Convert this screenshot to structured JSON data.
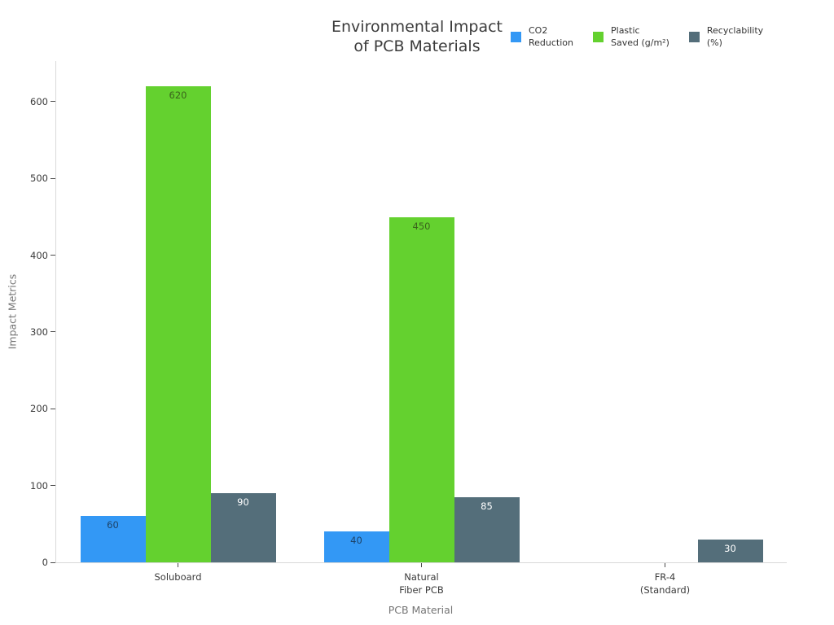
{
  "title": "Environmental Impact\nof PCB Materials",
  "legend": [
    {
      "id": "co2-reduction",
      "label": "CO2\nReduction",
      "color": "#3398f5"
    },
    {
      "id": "plastic-saved",
      "label": "Plastic\nSaved (g/m²)",
      "color": "#64d12f"
    },
    {
      "id": "recyclability",
      "label": "Recyclability\n(%)",
      "color": "#546e7a"
    }
  ],
  "chart_data": {
    "type": "bar",
    "title": "Environmental Impact of PCB Materials",
    "xlabel": "PCB Material",
    "ylabel": "Impact Metrics",
    "categories": [
      "Soluboard",
      "Natural\nFiber PCB",
      "FR-4\n(Standard)"
    ],
    "series": [
      {
        "id": "co2-reduction",
        "name": "CO2 Reduction",
        "color": "#3398f5",
        "label_color": "#1d4368",
        "values": [
          60,
          40,
          0
        ]
      },
      {
        "id": "plastic-saved",
        "name": "Plastic Saved (g/m²)",
        "color": "#64d12f",
        "label_color": "#3a631c",
        "values": [
          620,
          450,
          0
        ]
      },
      {
        "id": "recyclability",
        "name": "Recyclability (%)",
        "color": "#546e7a",
        "label_color": "#ffffff",
        "values": [
          90,
          85,
          30
        ]
      }
    ],
    "yticks": [
      0,
      100,
      200,
      300,
      400,
      500,
      600
    ],
    "ylim": [
      0,
      653
    ],
    "grid": false,
    "legend_position": "top-right",
    "value_labels": "inside-top"
  }
}
